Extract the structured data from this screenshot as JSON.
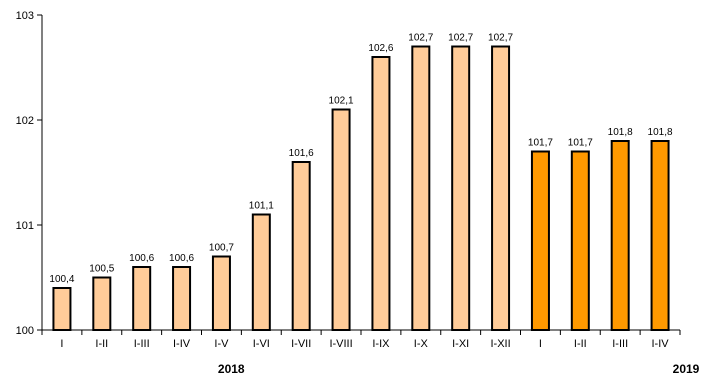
{
  "chart_data": {
    "type": "bar",
    "categories": [
      "I",
      "I-II",
      "I-III",
      "I-IV",
      "I-V",
      "I-VI",
      "I-VII",
      "I-VIII",
      "I-IX",
      "I-X",
      "I-XI",
      "I-XII",
      "I",
      "I-II",
      "I-III",
      "I-IV"
    ],
    "values": [
      100.4,
      100.5,
      100.6,
      100.6,
      100.7,
      101.1,
      101.6,
      102.1,
      102.6,
      102.7,
      102.7,
      102.7,
      101.7,
      101.7,
      101.8,
      101.8
    ],
    "value_labels": [
      "100,4",
      "100,5",
      "100,6",
      "100,6",
      "100,7",
      "101,1",
      "101,6",
      "102,1",
      "102,6",
      "102,7",
      "102,7",
      "102,7",
      "101,7",
      "101,7",
      "101,8",
      "101,8"
    ],
    "groups": [
      {
        "label": "2018",
        "start": 0,
        "end": 11,
        "color": "#FFCC99"
      },
      {
        "label": "2019",
        "start": 12,
        "end": 15,
        "color": "#FF9900"
      }
    ],
    "ylim": [
      100,
      103
    ],
    "yticks": [
      100,
      101,
      102,
      103
    ],
    "grid": false,
    "legend": "none",
    "bar_border_color": "#000000"
  }
}
